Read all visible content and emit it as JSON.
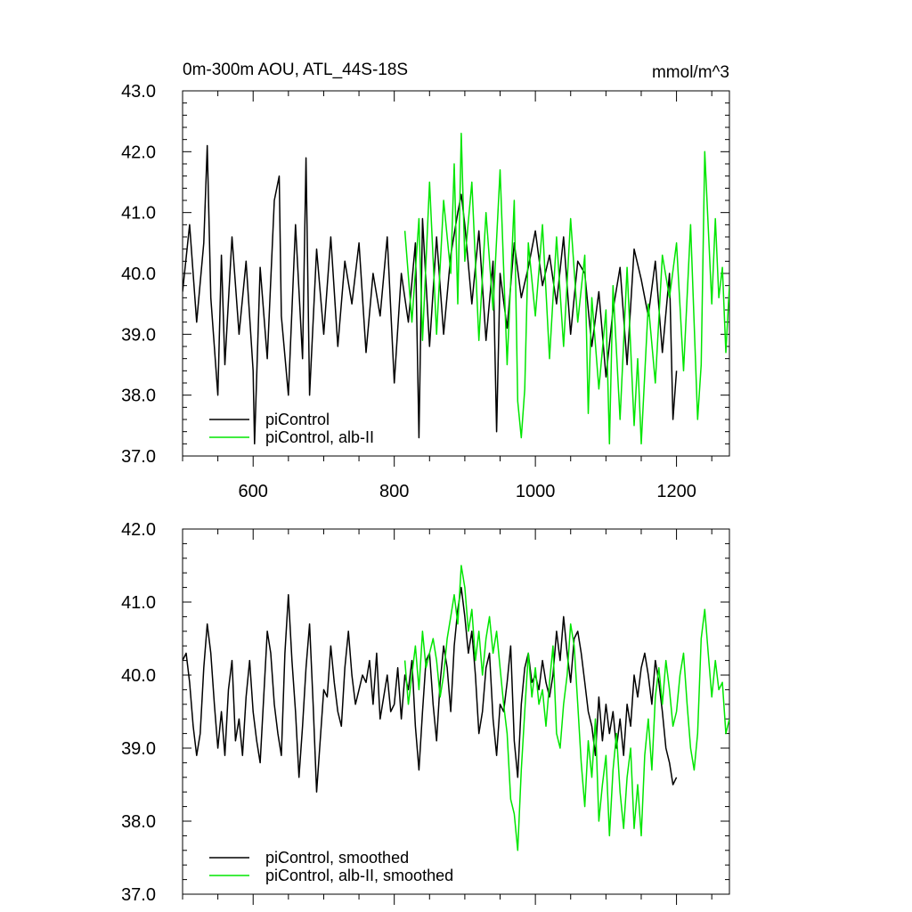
{
  "chart_data": [
    {
      "type": "line",
      "title": "0m-300m AOU, ATL_44S-18S",
      "units": "mmol/m^3",
      "xlim": [
        500,
        1275
      ],
      "ylim": [
        37.0,
        43.0
      ],
      "x_ticks": [
        600,
        800,
        1000,
        1200
      ],
      "x_tick_labels": [
        "600",
        "800",
        "1000",
        "1200"
      ],
      "y_ticks": [
        37.0,
        38.0,
        39.0,
        40.0,
        41.0,
        42.0,
        43.0
      ],
      "y_tick_labels": [
        "37.0",
        "38.0",
        "39.0",
        "40.0",
        "41.0",
        "42.0",
        "43.0"
      ],
      "grid": false,
      "legend_position": "bottom-left",
      "series": [
        {
          "name": "piControl",
          "color": "#000000",
          "x": [
            500,
            510,
            520,
            530,
            535,
            540,
            550,
            555,
            560,
            570,
            580,
            590,
            600,
            602,
            610,
            620,
            630,
            637,
            640,
            650,
            660,
            670,
            675,
            680,
            690,
            700,
            710,
            720,
            730,
            740,
            750,
            760,
            770,
            780,
            790,
            800,
            810,
            820,
            830,
            835,
            840,
            850,
            860,
            870,
            880,
            890,
            895,
            900,
            910,
            920,
            930,
            940,
            945,
            950,
            960,
            970,
            980,
            990,
            1000,
            1010,
            1020,
            1030,
            1040,
            1050,
            1060,
            1070,
            1080,
            1090,
            1100,
            1110,
            1120,
            1130,
            1140,
            1150,
            1160,
            1170,
            1180,
            1190,
            1195,
            1200
          ],
          "y": [
            39.7,
            40.8,
            39.2,
            40.5,
            42.1,
            39.6,
            38.0,
            40.3,
            38.5,
            40.6,
            39.0,
            40.2,
            38.4,
            37.2,
            40.1,
            38.6,
            41.2,
            41.6,
            39.3,
            38.0,
            40.8,
            38.6,
            41.9,
            38.0,
            40.4,
            39.0,
            40.6,
            38.8,
            40.2,
            39.5,
            40.5,
            38.7,
            40.0,
            39.3,
            40.6,
            38.2,
            40.0,
            39.2,
            40.5,
            37.3,
            40.9,
            38.8,
            40.6,
            39.0,
            40.3,
            41.0,
            41.3,
            40.8,
            39.5,
            40.7,
            38.9,
            40.2,
            37.4,
            40.0,
            39.1,
            40.5,
            39.6,
            40.1,
            40.7,
            39.8,
            40.3,
            39.5,
            40.6,
            39.0,
            40.2,
            40.0,
            38.8,
            39.7,
            38.3,
            39.4,
            40.1,
            38.5,
            40.4,
            39.9,
            39.3,
            40.2,
            38.7,
            40.0,
            37.6,
            38.4
          ]
        },
        {
          "name": "piControl, alb-II",
          "color": "#00e600",
          "x": [
            815,
            825,
            835,
            840,
            850,
            860,
            870,
            880,
            885,
            890,
            895,
            900,
            910,
            920,
            930,
            940,
            950,
            960,
            970,
            975,
            980,
            985,
            990,
            1000,
            1010,
            1020,
            1030,
            1040,
            1050,
            1060,
            1070,
            1075,
            1080,
            1090,
            1100,
            1105,
            1110,
            1120,
            1130,
            1140,
            1145,
            1150,
            1160,
            1170,
            1180,
            1190,
            1200,
            1210,
            1220,
            1230,
            1235,
            1240,
            1250,
            1255,
            1260,
            1265,
            1270,
            1275
          ],
          "y": [
            40.7,
            39.2,
            40.9,
            38.9,
            41.5,
            39.0,
            41.2,
            40.0,
            41.8,
            39.5,
            42.3,
            40.2,
            41.5,
            38.9,
            41.0,
            39.4,
            41.7,
            38.5,
            41.2,
            37.9,
            37.3,
            38.1,
            40.5,
            39.3,
            40.8,
            38.6,
            40.6,
            38.8,
            40.9,
            39.2,
            40.3,
            37.7,
            39.6,
            38.1,
            39.4,
            37.2,
            39.8,
            37.6,
            40.1,
            37.5,
            38.6,
            37.2,
            39.5,
            38.2,
            40.3,
            39.6,
            40.5,
            38.4,
            40.8,
            37.6,
            38.5,
            42.0,
            39.5,
            40.9,
            39.6,
            40.1,
            38.7,
            39.8
          ]
        }
      ]
    },
    {
      "type": "line",
      "xlim": [
        500,
        1275
      ],
      "ylim": [
        37.0,
        42.0
      ],
      "x_ticks": [
        600,
        800,
        1000,
        1200
      ],
      "y_ticks": [
        37.0,
        38.0,
        39.0,
        40.0,
        41.0,
        42.0
      ],
      "y_tick_labels": [
        "37.0",
        "38.0",
        "39.0",
        "40.0",
        "41.0",
        "42.0"
      ],
      "grid": false,
      "legend_position": "bottom-left",
      "series": [
        {
          "name": "piControl, smoothed",
          "color": "#000000",
          "x": [
            500,
            505,
            510,
            515,
            520,
            525,
            530,
            535,
            540,
            545,
            550,
            555,
            560,
            565,
            570,
            575,
            580,
            585,
            590,
            595,
            600,
            605,
            610,
            615,
            620,
            625,
            630,
            635,
            640,
            645,
            650,
            655,
            660,
            665,
            670,
            675,
            680,
            685,
            690,
            695,
            700,
            705,
            710,
            715,
            720,
            725,
            730,
            735,
            740,
            745,
            750,
            755,
            760,
            765,
            770,
            775,
            780,
            785,
            790,
            795,
            800,
            805,
            810,
            815,
            820,
            825,
            830,
            835,
            840,
            845,
            850,
            855,
            860,
            865,
            870,
            875,
            880,
            885,
            890,
            895,
            900,
            905,
            910,
            915,
            920,
            925,
            930,
            935,
            940,
            945,
            950,
            955,
            960,
            965,
            970,
            975,
            980,
            985,
            990,
            995,
            1000,
            1005,
            1010,
            1015,
            1020,
            1025,
            1030,
            1035,
            1040,
            1045,
            1050,
            1055,
            1060,
            1065,
            1070,
            1075,
            1080,
            1085,
            1090,
            1095,
            1100,
            1105,
            1110,
            1115,
            1120,
            1125,
            1130,
            1135,
            1140,
            1145,
            1150,
            1155,
            1160,
            1165,
            1170,
            1175,
            1180,
            1185,
            1190,
            1195,
            1200
          ],
          "y": [
            40.2,
            40.3,
            39.9,
            39.3,
            38.9,
            39.2,
            40.1,
            40.7,
            40.3,
            39.6,
            39.0,
            39.5,
            38.9,
            39.8,
            40.2,
            39.1,
            39.4,
            38.9,
            39.7,
            40.2,
            39.5,
            39.1,
            38.8,
            39.7,
            40.6,
            40.3,
            39.6,
            39.2,
            38.9,
            40.3,
            41.1,
            40.2,
            39.5,
            38.6,
            39.3,
            40.1,
            40.7,
            39.6,
            38.4,
            39.1,
            39.8,
            39.7,
            40.4,
            39.9,
            39.5,
            39.3,
            40.1,
            40.6,
            40.0,
            39.6,
            39.8,
            40.0,
            39.9,
            40.2,
            39.6,
            40.3,
            39.4,
            39.7,
            40.0,
            39.5,
            39.6,
            40.1,
            39.4,
            40.0,
            39.8,
            40.2,
            39.3,
            38.7,
            39.5,
            40.2,
            40.3,
            39.6,
            39.1,
            39.9,
            40.4,
            40.1,
            39.5,
            40.4,
            40.9,
            41.2,
            40.8,
            40.3,
            40.6,
            40.0,
            39.2,
            39.5,
            40.1,
            40.3,
            39.4,
            38.9,
            39.6,
            39.5,
            39.9,
            40.4,
            39.1,
            38.6,
            39.6,
            40.1,
            40.3,
            39.9,
            40.0,
            39.8,
            40.2,
            39.9,
            39.7,
            40.0,
            40.6,
            40.2,
            40.8,
            40.3,
            39.9,
            40.5,
            40.6,
            40.3,
            39.9,
            39.5,
            39.3,
            38.9,
            39.7,
            39.1,
            39.6,
            39.2,
            39.5,
            39.0,
            39.4,
            38.9,
            39.6,
            39.3,
            40.0,
            39.7,
            40.1,
            40.3,
            40.0,
            39.6,
            40.2,
            39.9,
            39.5,
            39.0,
            38.8,
            38.5,
            38.6
          ]
        },
        {
          "name": "piControl, alb-II, smoothed",
          "color": "#00e600",
          "x": [
            815,
            820,
            825,
            830,
            835,
            840,
            845,
            850,
            855,
            860,
            865,
            870,
            875,
            880,
            885,
            890,
            895,
            900,
            905,
            910,
            915,
            920,
            925,
            930,
            935,
            940,
            945,
            950,
            955,
            960,
            965,
            970,
            975,
            980,
            985,
            990,
            995,
            1000,
            1005,
            1010,
            1015,
            1020,
            1025,
            1030,
            1035,
            1040,
            1045,
            1050,
            1055,
            1060,
            1065,
            1070,
            1075,
            1080,
            1085,
            1090,
            1095,
            1100,
            1105,
            1110,
            1115,
            1120,
            1125,
            1130,
            1135,
            1140,
            1145,
            1150,
            1155,
            1160,
            1165,
            1170,
            1175,
            1180,
            1185,
            1190,
            1195,
            1200,
            1205,
            1210,
            1215,
            1220,
            1225,
            1230,
            1235,
            1240,
            1245,
            1250,
            1255,
            1260,
            1265,
            1270,
            1275
          ],
          "y": [
            40.2,
            39.6,
            40.0,
            40.4,
            39.8,
            40.6,
            40.1,
            40.3,
            40.5,
            40.2,
            39.7,
            40.0,
            40.5,
            40.8,
            41.1,
            40.7,
            41.5,
            41.2,
            40.6,
            40.9,
            40.2,
            40.6,
            40.0,
            40.5,
            40.8,
            40.3,
            40.6,
            40.1,
            39.6,
            39.2,
            38.3,
            38.1,
            37.6,
            38.7,
            39.5,
            40.3,
            39.7,
            40.1,
            39.6,
            39.8,
            39.3,
            39.9,
            40.4,
            39.2,
            39.0,
            39.6,
            40.0,
            40.7,
            40.4,
            39.6,
            38.8,
            38.2,
            39.1,
            38.6,
            39.4,
            38.0,
            38.5,
            38.9,
            37.8,
            38.7,
            39.2,
            38.4,
            37.9,
            38.6,
            39.0,
            37.9,
            38.5,
            37.8,
            38.9,
            39.4,
            38.7,
            39.7,
            40.1,
            39.6,
            40.2,
            39.8,
            39.3,
            39.5,
            40.0,
            40.3,
            39.6,
            39.0,
            38.7,
            39.2,
            40.5,
            40.9,
            40.3,
            39.7,
            40.2,
            39.8,
            39.9,
            39.2,
            39.4
          ]
        }
      ]
    }
  ]
}
